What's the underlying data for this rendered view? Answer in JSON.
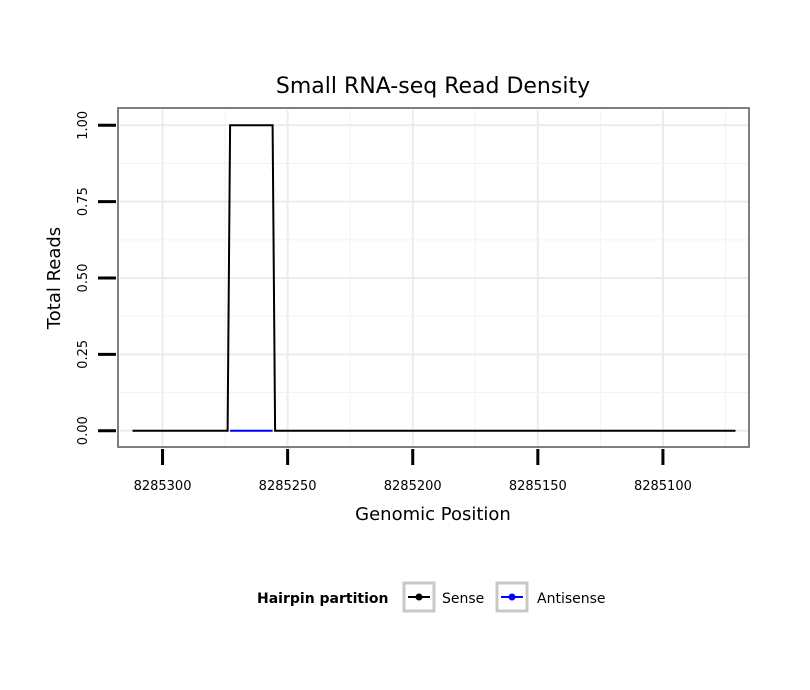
{
  "chart_data": {
    "type": "line",
    "title": "Small RNA-seq Read Density",
    "xlabel": "Genomic Position",
    "ylabel": "Total Reads",
    "x_reversed": true,
    "xlim": [
      8285317,
      8285066
    ],
    "ylim": [
      -0.05,
      1.05
    ],
    "x_ticks": [
      8285300,
      8285250,
      8285200,
      8285150,
      8285100
    ],
    "x_tick_labels": [
      "8285300",
      "8285250",
      "8285200",
      "8285150",
      "8285100"
    ],
    "y_ticks": [
      0,
      0.25,
      0.5,
      0.75,
      1.0
    ],
    "y_tick_labels": [
      "0.00",
      "0.25",
      "0.50",
      "0.75",
      "1.00"
    ],
    "grid": true,
    "legend_position": "bottom",
    "series": [
      {
        "name": "Sense",
        "color": "#000000",
        "points": [
          [
            8285312,
            0
          ],
          [
            8285274,
            0
          ],
          [
            8285273,
            1
          ],
          [
            8285256,
            1
          ],
          [
            8285255,
            0
          ],
          [
            8285071,
            0
          ]
        ]
      },
      {
        "name": "Antisense",
        "color": "#0000ff",
        "points": [
          [
            8285273,
            0
          ],
          [
            8285256,
            0
          ]
        ]
      }
    ]
  },
  "legend": {
    "title": "Hairpin partition",
    "items": [
      {
        "label": "Sense",
        "color": "#000000"
      },
      {
        "label": "Antisense",
        "color": "#0000ff"
      }
    ]
  }
}
